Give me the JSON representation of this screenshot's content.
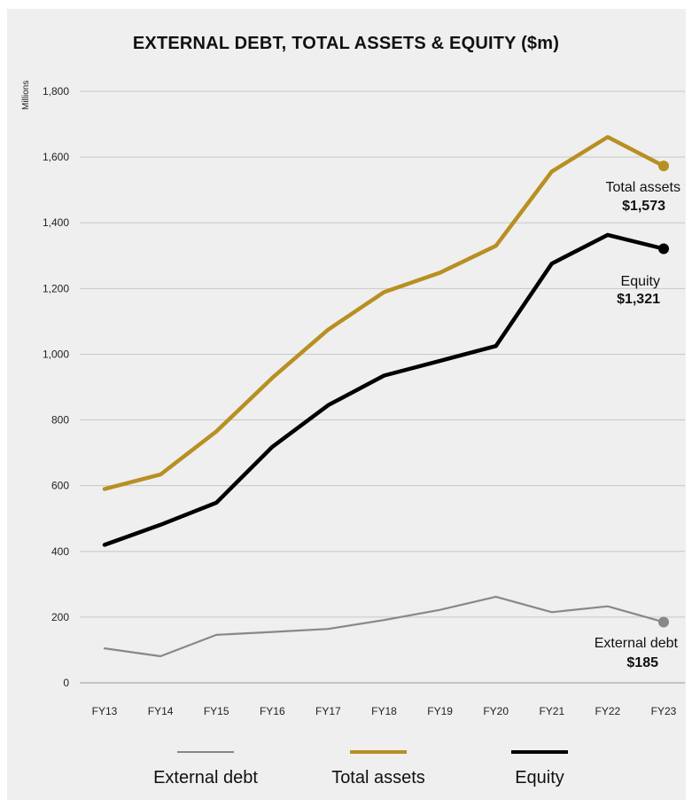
{
  "chart_data": {
    "type": "line",
    "title": "EXTERNAL DEBT, TOTAL ASSETS & EQUITY ($m)",
    "ylabel": "Millions",
    "ylim": [
      0,
      1800
    ],
    "yticks": [
      "0",
      "200",
      "400",
      "600",
      "800",
      "1,000",
      "1,200",
      "1,400",
      "1,600",
      "1,800"
    ],
    "ytick_values": [
      0,
      200,
      400,
      600,
      800,
      1000,
      1200,
      1400,
      1600,
      1800
    ],
    "categories": [
      "FY13",
      "FY14",
      "FY15",
      "FY16",
      "FY17",
      "FY18",
      "FY19",
      "FY20",
      "FY21",
      "FY22",
      "FY23"
    ],
    "grid": true,
    "legend_position": "bottom",
    "series": [
      {
        "name": "External debt",
        "color": "#888888",
        "values": [
          105,
          81,
          146,
          155,
          164,
          191,
          222,
          262,
          215,
          233,
          185
        ],
        "end_label": "External debt",
        "end_value": "$185"
      },
      {
        "name": "Total assets",
        "color": "#b88f22",
        "values": [
          590,
          634,
          765,
          928,
          1075,
          1189,
          1248,
          1330,
          1556,
          1661,
          1573
        ],
        "end_label": "Total assets",
        "end_value": "$1,573"
      },
      {
        "name": "Equity",
        "color": "#000000",
        "values": [
          420,
          481,
          548,
          718,
          845,
          935,
          980,
          1025,
          1276,
          1363,
          1321
        ],
        "end_label": "Equity",
        "end_value": "$1,321"
      }
    ]
  }
}
